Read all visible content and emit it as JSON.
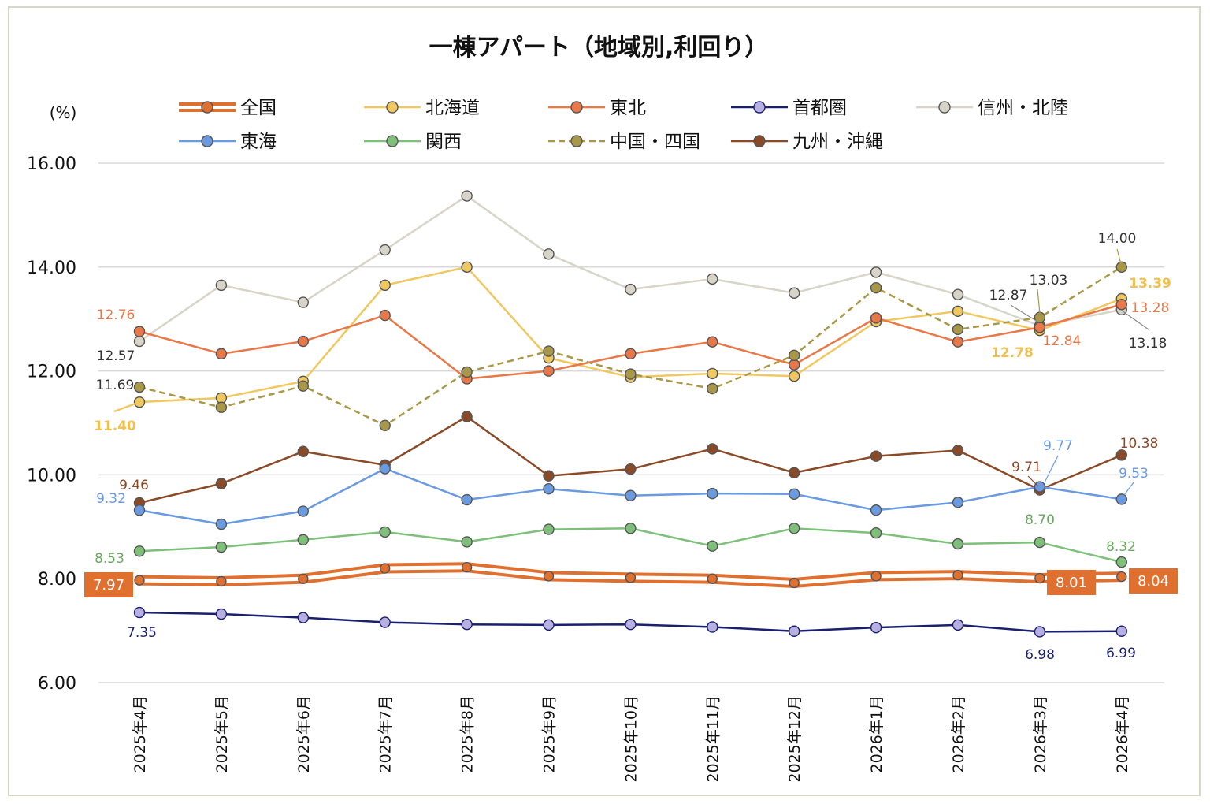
{
  "chart_data": {
    "type": "line",
    "title": "一棟アパート（地域別,利回り）",
    "ylabel": "(%)",
    "xlabel": "",
    "ylim": [
      6,
      16
    ],
    "yticks": [
      "6.00",
      "8.00",
      "10.00",
      "12.00",
      "14.00",
      "16.00"
    ],
    "grid": true,
    "legend_position": "top",
    "categories": [
      "2025年4月",
      "2025年5月",
      "2025年6月",
      "2025年7月",
      "2025年8月",
      "2025年9月",
      "2025年10月",
      "2025年11月",
      "2025年12月",
      "2026年1月",
      "2026年2月",
      "2026年3月",
      "2026年4月"
    ],
    "series": [
      {
        "name": "全国",
        "key": "zenkoku",
        "color": "#e07030",
        "style": "double",
        "values": [
          7.97,
          7.95,
          8.0,
          8.2,
          8.22,
          8.05,
          8.02,
          8.0,
          7.92,
          8.05,
          8.07,
          8.01,
          8.04
        ]
      },
      {
        "name": "北海道",
        "key": "hokkaido",
        "color": "#f0c860",
        "style": "solid",
        "values": [
          11.4,
          11.48,
          11.8,
          13.65,
          14.0,
          12.25,
          11.88,
          11.95,
          11.9,
          12.95,
          13.15,
          12.78,
          13.39
        ]
      },
      {
        "name": "東北",
        "key": "tohoku",
        "color": "#e87848",
        "style": "solid",
        "values": [
          12.76,
          12.33,
          12.57,
          13.07,
          11.85,
          12.0,
          12.33,
          12.56,
          12.12,
          13.02,
          12.56,
          12.84,
          13.28
        ]
      },
      {
        "name": "首都圏",
        "key": "shutoken",
        "color": "#1a1f6e",
        "style": "solid",
        "values": [
          7.35,
          7.32,
          7.25,
          7.16,
          7.12,
          7.11,
          7.12,
          7.07,
          6.99,
          7.06,
          7.11,
          6.98,
          6.99
        ]
      },
      {
        "name": "信州・北陸",
        "key": "shinshu",
        "color": "#d8d4c8",
        "style": "solid",
        "values": [
          12.57,
          13.65,
          13.32,
          14.33,
          15.37,
          14.25,
          13.57,
          13.77,
          13.5,
          13.9,
          13.47,
          12.87,
          13.18
        ]
      },
      {
        "name": "東海",
        "key": "tokai",
        "color": "#6a9ae0",
        "style": "solid",
        "values": [
          9.32,
          9.05,
          9.3,
          10.12,
          9.52,
          9.73,
          9.6,
          9.64,
          9.63,
          9.32,
          9.47,
          9.77,
          9.53
        ]
      },
      {
        "name": "関西",
        "key": "kansai",
        "color": "#7ec07a",
        "style": "solid",
        "values": [
          8.53,
          8.61,
          8.75,
          8.9,
          8.71,
          8.95,
          8.97,
          8.63,
          8.97,
          8.88,
          8.67,
          8.7,
          8.32
        ]
      },
      {
        "name": "中国・四国",
        "key": "chugoku",
        "color": "#a89848",
        "style": "dashed",
        "values": [
          11.69,
          11.3,
          11.71,
          10.95,
          11.98,
          12.38,
          11.94,
          11.66,
          12.3,
          13.6,
          12.8,
          13.03,
          14.0
        ]
      },
      {
        "name": "九州・沖縄",
        "key": "kyushu",
        "color": "#8a4a28",
        "style": "solid",
        "values": [
          9.46,
          9.83,
          10.45,
          10.19,
          11.12,
          9.98,
          10.11,
          10.5,
          10.04,
          10.36,
          10.47,
          9.71,
          10.38
        ]
      }
    ],
    "annotations": [
      {
        "text": "12.76",
        "color": "#e87848"
      },
      {
        "text": "12.57",
        "color": "#333333"
      },
      {
        "text": "11.69",
        "color": "#333333"
      },
      {
        "text": "11.40",
        "color": "#f0c050"
      },
      {
        "text": "9.46",
        "color": "#8a4a28"
      },
      {
        "text": "9.32",
        "color": "#6a9ae0"
      },
      {
        "text": "8.53",
        "color": "#6aa860"
      },
      {
        "text": "7.97",
        "color": "#ffffff"
      },
      {
        "text": "7.35",
        "color": "#1a1f6e"
      },
      {
        "text": "14.00",
        "color": "#333333"
      },
      {
        "text": "13.03",
        "color": "#333333"
      },
      {
        "text": "12.87",
        "color": "#333333"
      },
      {
        "text": "13.39",
        "color": "#f0c050"
      },
      {
        "text": "13.28",
        "color": "#e87848"
      },
      {
        "text": "12.84",
        "color": "#e87848"
      },
      {
        "text": "12.78",
        "color": "#f0c050"
      },
      {
        "text": "13.18",
        "color": "#333333"
      },
      {
        "text": "9.77",
        "color": "#6a9ae0"
      },
      {
        "text": "10.38",
        "color": "#8a4a28"
      },
      {
        "text": "9.71",
        "color": "#8a4a28"
      },
      {
        "text": "9.53",
        "color": "#6a9ae0"
      },
      {
        "text": "8.70",
        "color": "#6aa860"
      },
      {
        "text": "8.32",
        "color": "#6aa860"
      },
      {
        "text": "8.01",
        "color": "#ffffff"
      },
      {
        "text": "8.04",
        "color": "#ffffff"
      },
      {
        "text": "6.98",
        "color": "#1a1f6e"
      },
      {
        "text": "6.99",
        "color": "#1a1f6e"
      }
    ]
  }
}
